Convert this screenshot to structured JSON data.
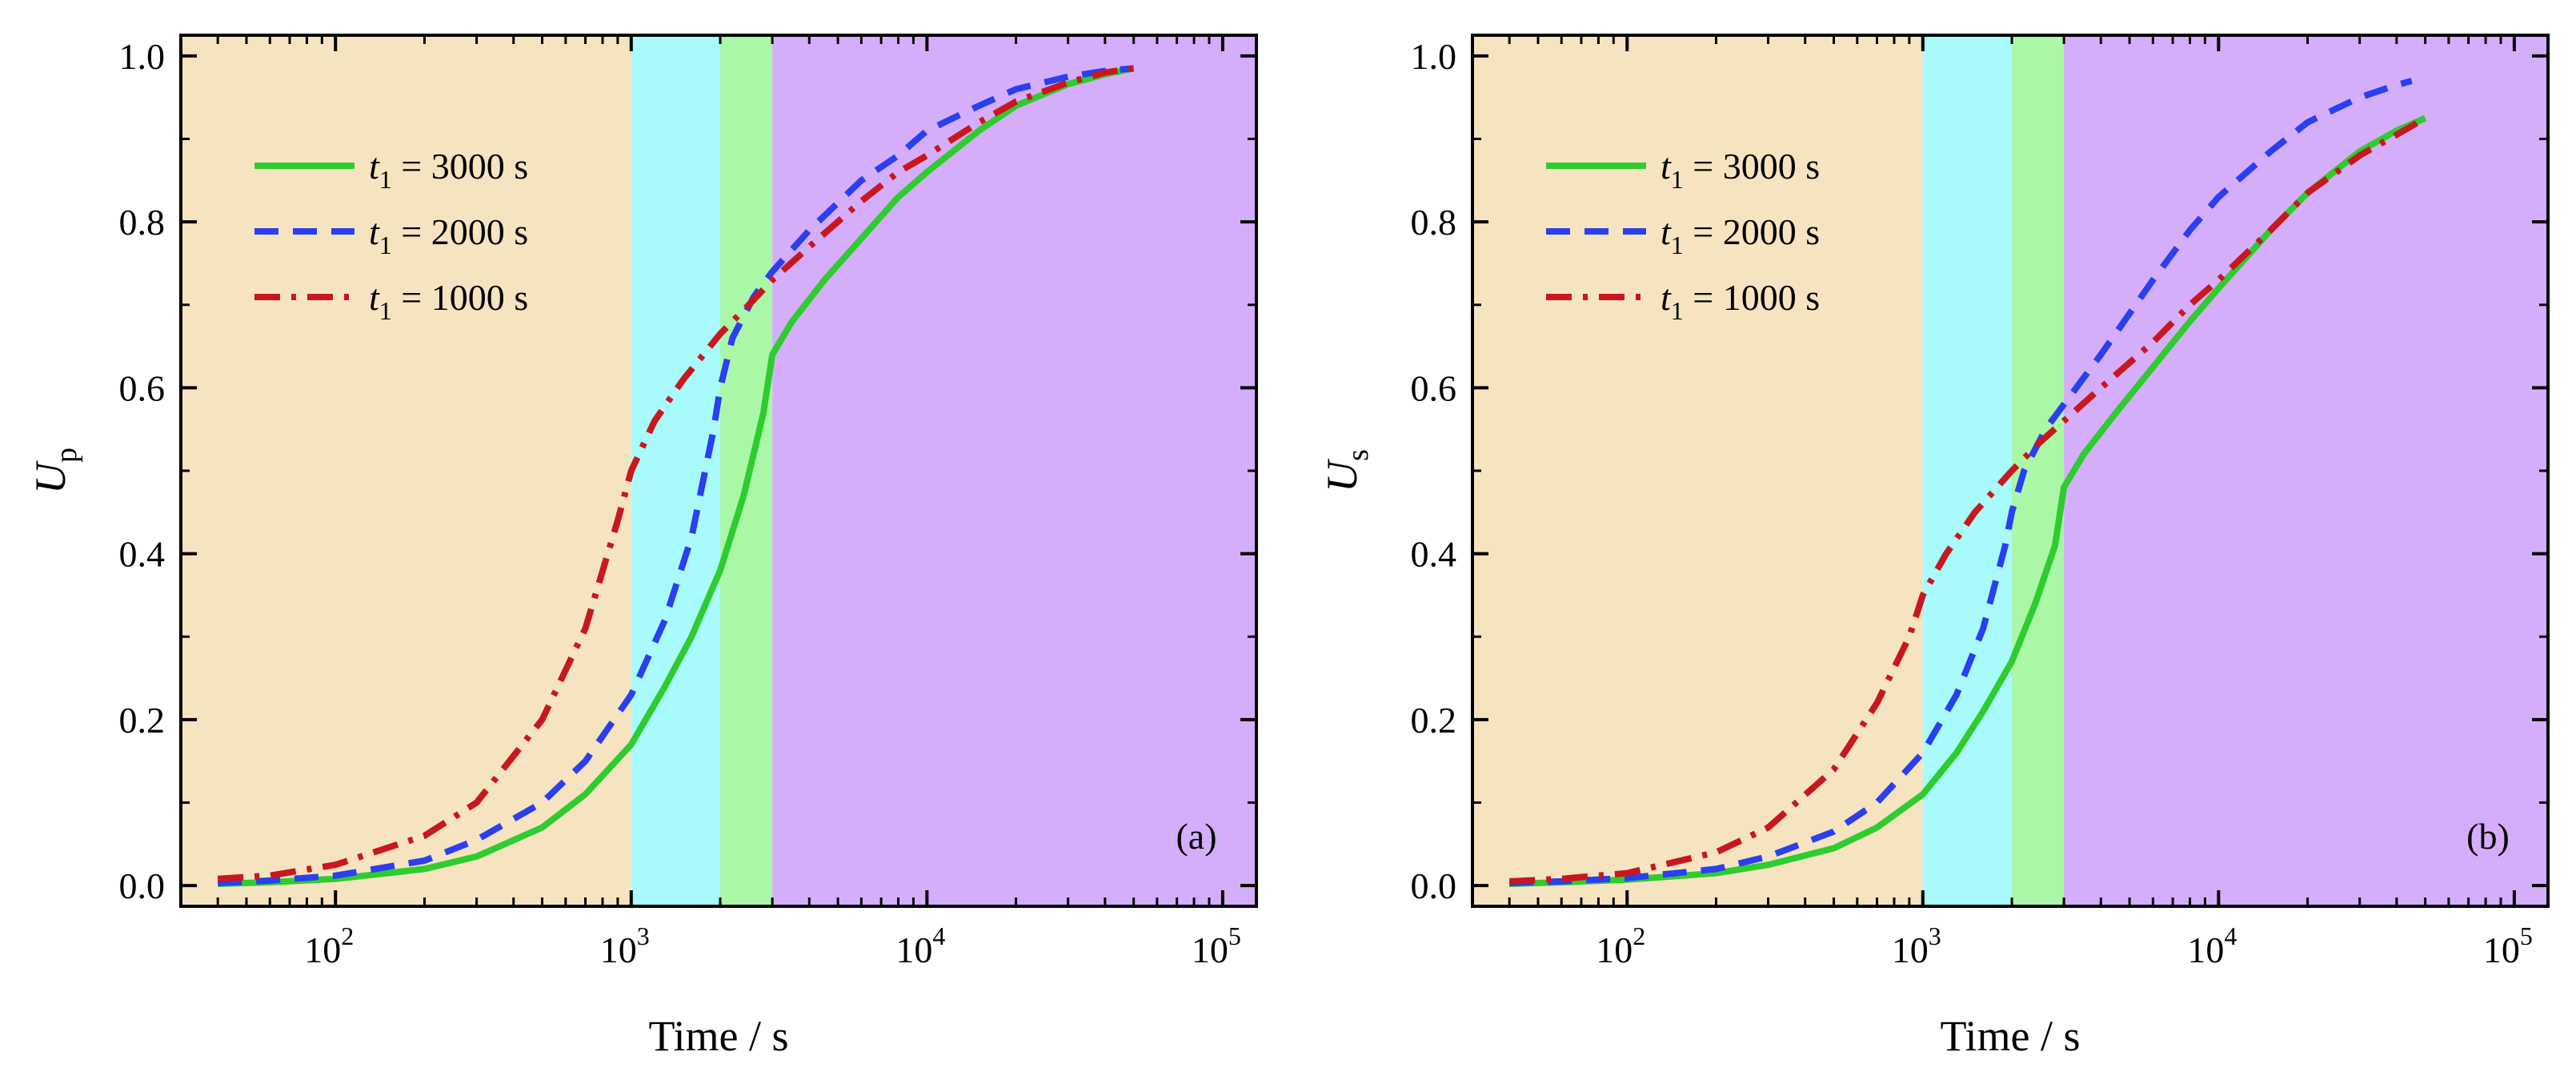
{
  "colors": {
    "region_1": "#f6e4c0",
    "region_2": "#a9fafb",
    "region_3": "#aaf7a8",
    "region_4": "#d5aefb",
    "series_3000": "#2ecc2e",
    "series_2000": "#2a3ff0",
    "series_1000": "#c8171e"
  },
  "chart_data": [
    {
      "type": "line",
      "panel_label": "(a)",
      "xlabel": "Time / s",
      "ylabel_main": "U",
      "ylabel_sub": "p",
      "xscale": "log",
      "xlim": [
        30,
        130000
      ],
      "ylim": [
        -0.025,
        1.025
      ],
      "x_ticks": [
        {
          "value": 100,
          "base": "10",
          "exp": "2"
        },
        {
          "value": 1000,
          "base": "10",
          "exp": "3"
        },
        {
          "value": 10000,
          "base": "10",
          "exp": "4"
        },
        {
          "value": 100000,
          "base": "10",
          "exp": "5"
        }
      ],
      "y_ticks": [
        {
          "value": 0.0,
          "label": "0.0"
        },
        {
          "value": 0.2,
          "label": "0.2"
        },
        {
          "value": 0.4,
          "label": "0.4"
        },
        {
          "value": 0.6,
          "label": "0.6"
        },
        {
          "value": 0.8,
          "label": "0.8"
        },
        {
          "value": 1.0,
          "label": "1.0"
        }
      ],
      "shaded_regions": [
        {
          "x0": 30,
          "x1": 1000,
          "color_key": "region_1"
        },
        {
          "x0": 1000,
          "x1": 2000,
          "color_key": "region_2"
        },
        {
          "x0": 2000,
          "x1": 3000,
          "color_key": "region_3"
        },
        {
          "x0": 3000,
          "x1": 130000,
          "color_key": "region_4"
        }
      ],
      "legend_position": "top-left",
      "series": [
        {
          "name": "t1 = 3000 s",
          "legend_var": "t",
          "legend_sub": "1",
          "legend_rest": " = 3000 s",
          "style": "solid",
          "color_key": "series_3000",
          "x": [
            40,
            60,
            100,
            200,
            300,
            500,
            700,
            1000,
            1300,
            1600,
            2000,
            2400,
            2800,
            3000,
            3500,
            4500,
            6000,
            8000,
            10000,
            15000,
            20000,
            30000,
            40000,
            50000
          ],
          "y": [
            0.002,
            0.004,
            0.008,
            0.02,
            0.035,
            0.07,
            0.11,
            0.17,
            0.24,
            0.3,
            0.38,
            0.47,
            0.57,
            0.64,
            0.68,
            0.73,
            0.78,
            0.83,
            0.86,
            0.91,
            0.94,
            0.966,
            0.978,
            0.985
          ]
        },
        {
          "name": "t1 = 2000 s",
          "legend_var": "t",
          "legend_sub": "1",
          "legend_rest": " = 2000 s",
          "style": "dashed",
          "color_key": "series_2000",
          "x": [
            40,
            60,
            100,
            200,
            300,
            500,
            700,
            1000,
            1300,
            1600,
            1900,
            2000,
            2200,
            2600,
            3000,
            4000,
            6000,
            8000,
            10000,
            15000,
            20000,
            30000,
            40000,
            50000
          ],
          "y": [
            0.003,
            0.006,
            0.012,
            0.03,
            0.055,
            0.1,
            0.15,
            0.23,
            0.32,
            0.42,
            0.55,
            0.6,
            0.66,
            0.71,
            0.74,
            0.79,
            0.85,
            0.88,
            0.91,
            0.94,
            0.96,
            0.975,
            0.982,
            0.985
          ]
        },
        {
          "name": "t1 = 1000 s",
          "legend_var": "t",
          "legend_sub": "1",
          "legend_rest": " = 1000 s",
          "style": "dashdot",
          "color_key": "series_1000",
          "x": [
            40,
            60,
            100,
            200,
            300,
            500,
            700,
            900,
            1000,
            1200,
            1500,
            2000,
            2500,
            3000,
            4000,
            6000,
            8000,
            10000,
            15000,
            20000,
            30000,
            40000,
            50000
          ],
          "y": [
            0.008,
            0.012,
            0.025,
            0.06,
            0.1,
            0.2,
            0.31,
            0.44,
            0.5,
            0.56,
            0.61,
            0.665,
            0.7,
            0.73,
            0.77,
            0.825,
            0.86,
            0.88,
            0.92,
            0.945,
            0.968,
            0.98,
            0.985
          ]
        }
      ]
    },
    {
      "type": "line",
      "panel_label": "(b)",
      "xlabel": "Time / s",
      "ylabel_main": "U",
      "ylabel_sub": "s",
      "xscale": "log",
      "xlim": [
        30,
        130000
      ],
      "ylim": [
        -0.025,
        1.025
      ],
      "x_ticks": [
        {
          "value": 100,
          "base": "10",
          "exp": "2"
        },
        {
          "value": 1000,
          "base": "10",
          "exp": "3"
        },
        {
          "value": 10000,
          "base": "10",
          "exp": "4"
        },
        {
          "value": 100000,
          "base": "10",
          "exp": "5"
        }
      ],
      "y_ticks": [
        {
          "value": 0.0,
          "label": "0.0"
        },
        {
          "value": 0.2,
          "label": "0.2"
        },
        {
          "value": 0.4,
          "label": "0.4"
        },
        {
          "value": 0.6,
          "label": "0.6"
        },
        {
          "value": 0.8,
          "label": "0.8"
        },
        {
          "value": 1.0,
          "label": "1.0"
        }
      ],
      "shaded_regions": [
        {
          "x0": 30,
          "x1": 1000,
          "color_key": "region_1"
        },
        {
          "x0": 1000,
          "x1": 2000,
          "color_key": "region_2"
        },
        {
          "x0": 2000,
          "x1": 3000,
          "color_key": "region_3"
        },
        {
          "x0": 3000,
          "x1": 130000,
          "color_key": "region_4"
        }
      ],
      "legend_position": "top-left",
      "series": [
        {
          "name": "t1 = 3000 s",
          "legend_var": "t",
          "legend_sub": "1",
          "legend_rest": " = 3000 s",
          "style": "solid",
          "color_key": "series_3000",
          "x": [
            40,
            60,
            100,
            200,
            300,
            500,
            700,
            1000,
            1300,
            1600,
            2000,
            2400,
            2800,
            3000,
            3500,
            4500,
            6000,
            8000,
            10000,
            15000,
            20000,
            30000,
            40000,
            50000
          ],
          "y": [
            0.002,
            0.004,
            0.007,
            0.015,
            0.025,
            0.045,
            0.07,
            0.11,
            0.16,
            0.21,
            0.27,
            0.34,
            0.41,
            0.48,
            0.52,
            0.57,
            0.625,
            0.68,
            0.72,
            0.79,
            0.835,
            0.885,
            0.91,
            0.925
          ]
        },
        {
          "name": "t1 = 2000 s",
          "legend_var": "t",
          "legend_sub": "1",
          "legend_rest": " = 2000 s",
          "style": "dashed",
          "color_key": "series_2000",
          "x": [
            40,
            60,
            100,
            200,
            300,
            500,
            700,
            1000,
            1300,
            1600,
            1900,
            2000,
            2200,
            2600,
            3000,
            4000,
            6000,
            8000,
            10000,
            15000,
            20000,
            30000,
            40000,
            45000
          ],
          "y": [
            0.003,
            0.005,
            0.009,
            0.02,
            0.035,
            0.065,
            0.1,
            0.16,
            0.23,
            0.31,
            0.41,
            0.45,
            0.5,
            0.55,
            0.58,
            0.64,
            0.73,
            0.79,
            0.83,
            0.885,
            0.92,
            0.95,
            0.965,
            0.97
          ]
        },
        {
          "name": "t1 = 1000 s",
          "legend_var": "t",
          "legend_sub": "1",
          "legend_rest": " = 1000 s",
          "style": "dashdot",
          "color_key": "series_1000",
          "x": [
            40,
            60,
            100,
            200,
            300,
            500,
            700,
            900,
            1000,
            1200,
            1500,
            2000,
            2500,
            3000,
            4000,
            6000,
            8000,
            10000,
            15000,
            20000,
            30000,
            40000,
            50000
          ],
          "y": [
            0.005,
            0.008,
            0.015,
            0.04,
            0.07,
            0.14,
            0.22,
            0.3,
            0.35,
            0.4,
            0.45,
            0.5,
            0.535,
            0.56,
            0.6,
            0.655,
            0.7,
            0.73,
            0.79,
            0.835,
            0.88,
            0.905,
            0.925
          ]
        }
      ]
    }
  ]
}
